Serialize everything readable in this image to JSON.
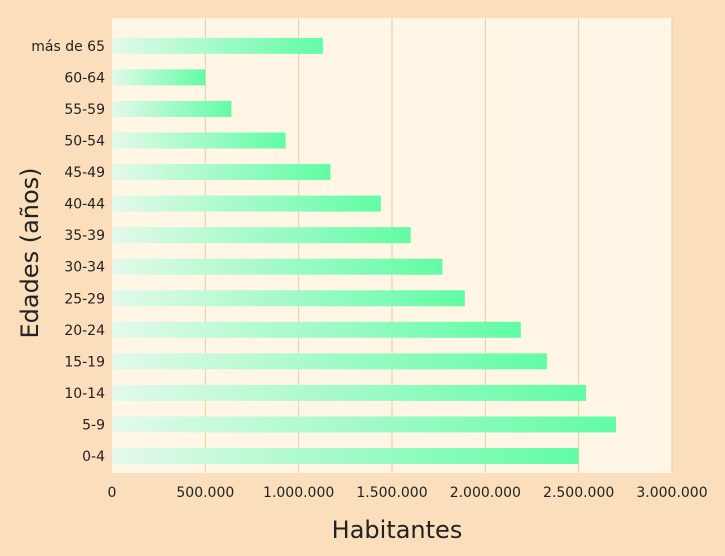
{
  "chart_data": {
    "type": "bar",
    "orientation": "horizontal",
    "title": "",
    "xlabel": "Habitantes",
    "ylabel": "Edades (años)",
    "categories": [
      "0-4",
      "5-9",
      "10-14",
      "15-19",
      "20-24",
      "25-29",
      "30-34",
      "35-39",
      "40-44",
      "45-49",
      "50-54",
      "55-59",
      "60-64",
      "más de 65"
    ],
    "values": [
      2500000,
      2700000,
      2540000,
      2330000,
      2190000,
      1890000,
      1770000,
      1600000,
      1440000,
      1170000,
      930000,
      640000,
      500000,
      1130000
    ],
    "xlim": [
      0,
      3000000
    ],
    "xticks": [
      0,
      500000,
      1000000,
      1500000,
      2000000,
      2500000,
      3000000
    ],
    "xtick_labels": [
      "0",
      "500.000",
      "1.000.000",
      "1.500.000",
      "2.000.000",
      "2.500.000",
      "3.000.000"
    ],
    "grid": true,
    "colors": {
      "background": "#fbdfbc",
      "plot": "#fff6e6",
      "bar_start": "#e3f9ea",
      "bar_end": "#61fca5",
      "grid": "#e3cfa4"
    }
  }
}
